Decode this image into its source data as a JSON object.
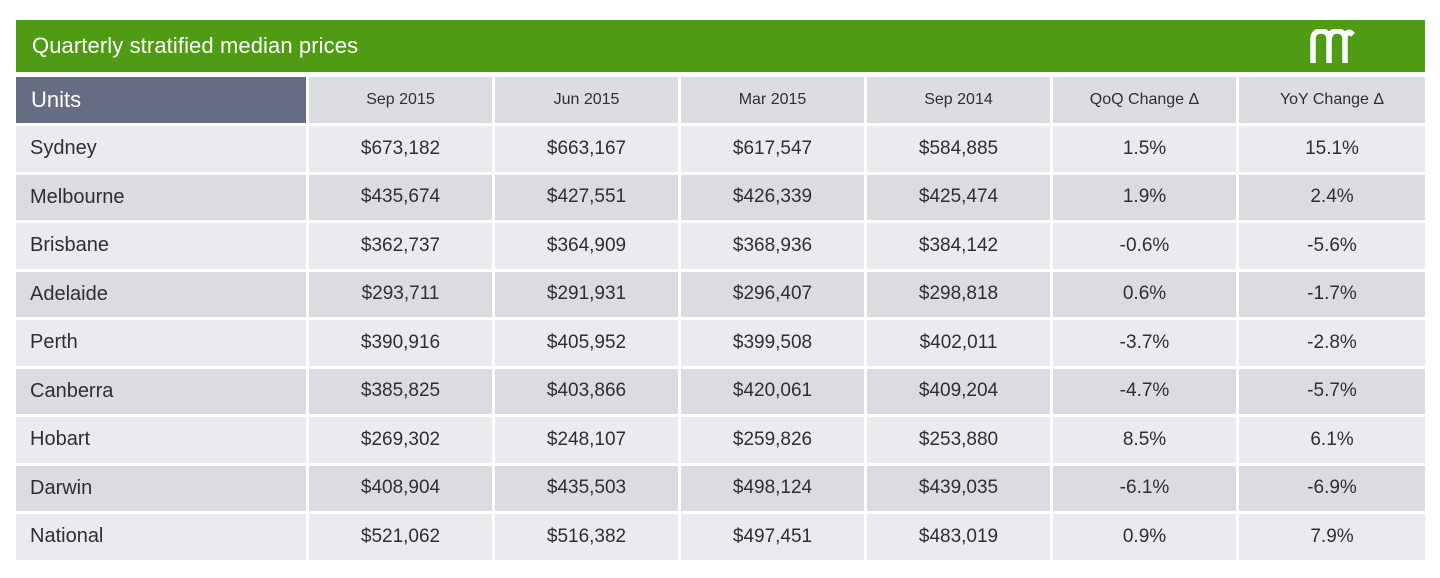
{
  "title": "Quarterly stratified median prices",
  "logo_icon": "domain-m-logo",
  "colors": {
    "title_bar": "#4f9c14",
    "units_header": "#666d82",
    "header_cell": "#dcdde1",
    "row_light": "#eaebef",
    "row_dark": "#dbdce0"
  },
  "chart_data": {
    "type": "table",
    "columns": [
      "Units",
      "Sep 2015",
      "Jun 2015",
      "Mar 2015",
      "Sep 2014",
      "QoQ Change Δ",
      "YoY Change Δ"
    ],
    "rows": [
      [
        "Sydney",
        "$673,182",
        "$663,167",
        "$617,547",
        "$584,885",
        "1.5%",
        "15.1%"
      ],
      [
        "Melbourne",
        "$435,674",
        "$427,551",
        "$426,339",
        "$425,474",
        "1.9%",
        "2.4%"
      ],
      [
        "Brisbane",
        "$362,737",
        "$364,909",
        "$368,936",
        "$384,142",
        "-0.6%",
        "-5.6%"
      ],
      [
        "Adelaide",
        "$293,711",
        "$291,931",
        "$296,407",
        "$298,818",
        "0.6%",
        "-1.7%"
      ],
      [
        "Perth",
        "$390,916",
        "$405,952",
        "$399,508",
        "$402,011",
        "-3.7%",
        "-2.8%"
      ],
      [
        "Canberra",
        "$385,825",
        "$403,866",
        "$420,061",
        "$409,204",
        "-4.7%",
        "-5.7%"
      ],
      [
        "Hobart",
        "$269,302",
        "$248,107",
        "$259,826",
        "$253,880",
        "8.5%",
        "6.1%"
      ],
      [
        "Darwin",
        "$408,904",
        "$435,503",
        "$498,124",
        "$439,035",
        "-6.1%",
        "-6.9%"
      ],
      [
        "National",
        "$521,062",
        "$516,382",
        "$497,451",
        "$483,019",
        "0.9%",
        "7.9%"
      ]
    ]
  }
}
